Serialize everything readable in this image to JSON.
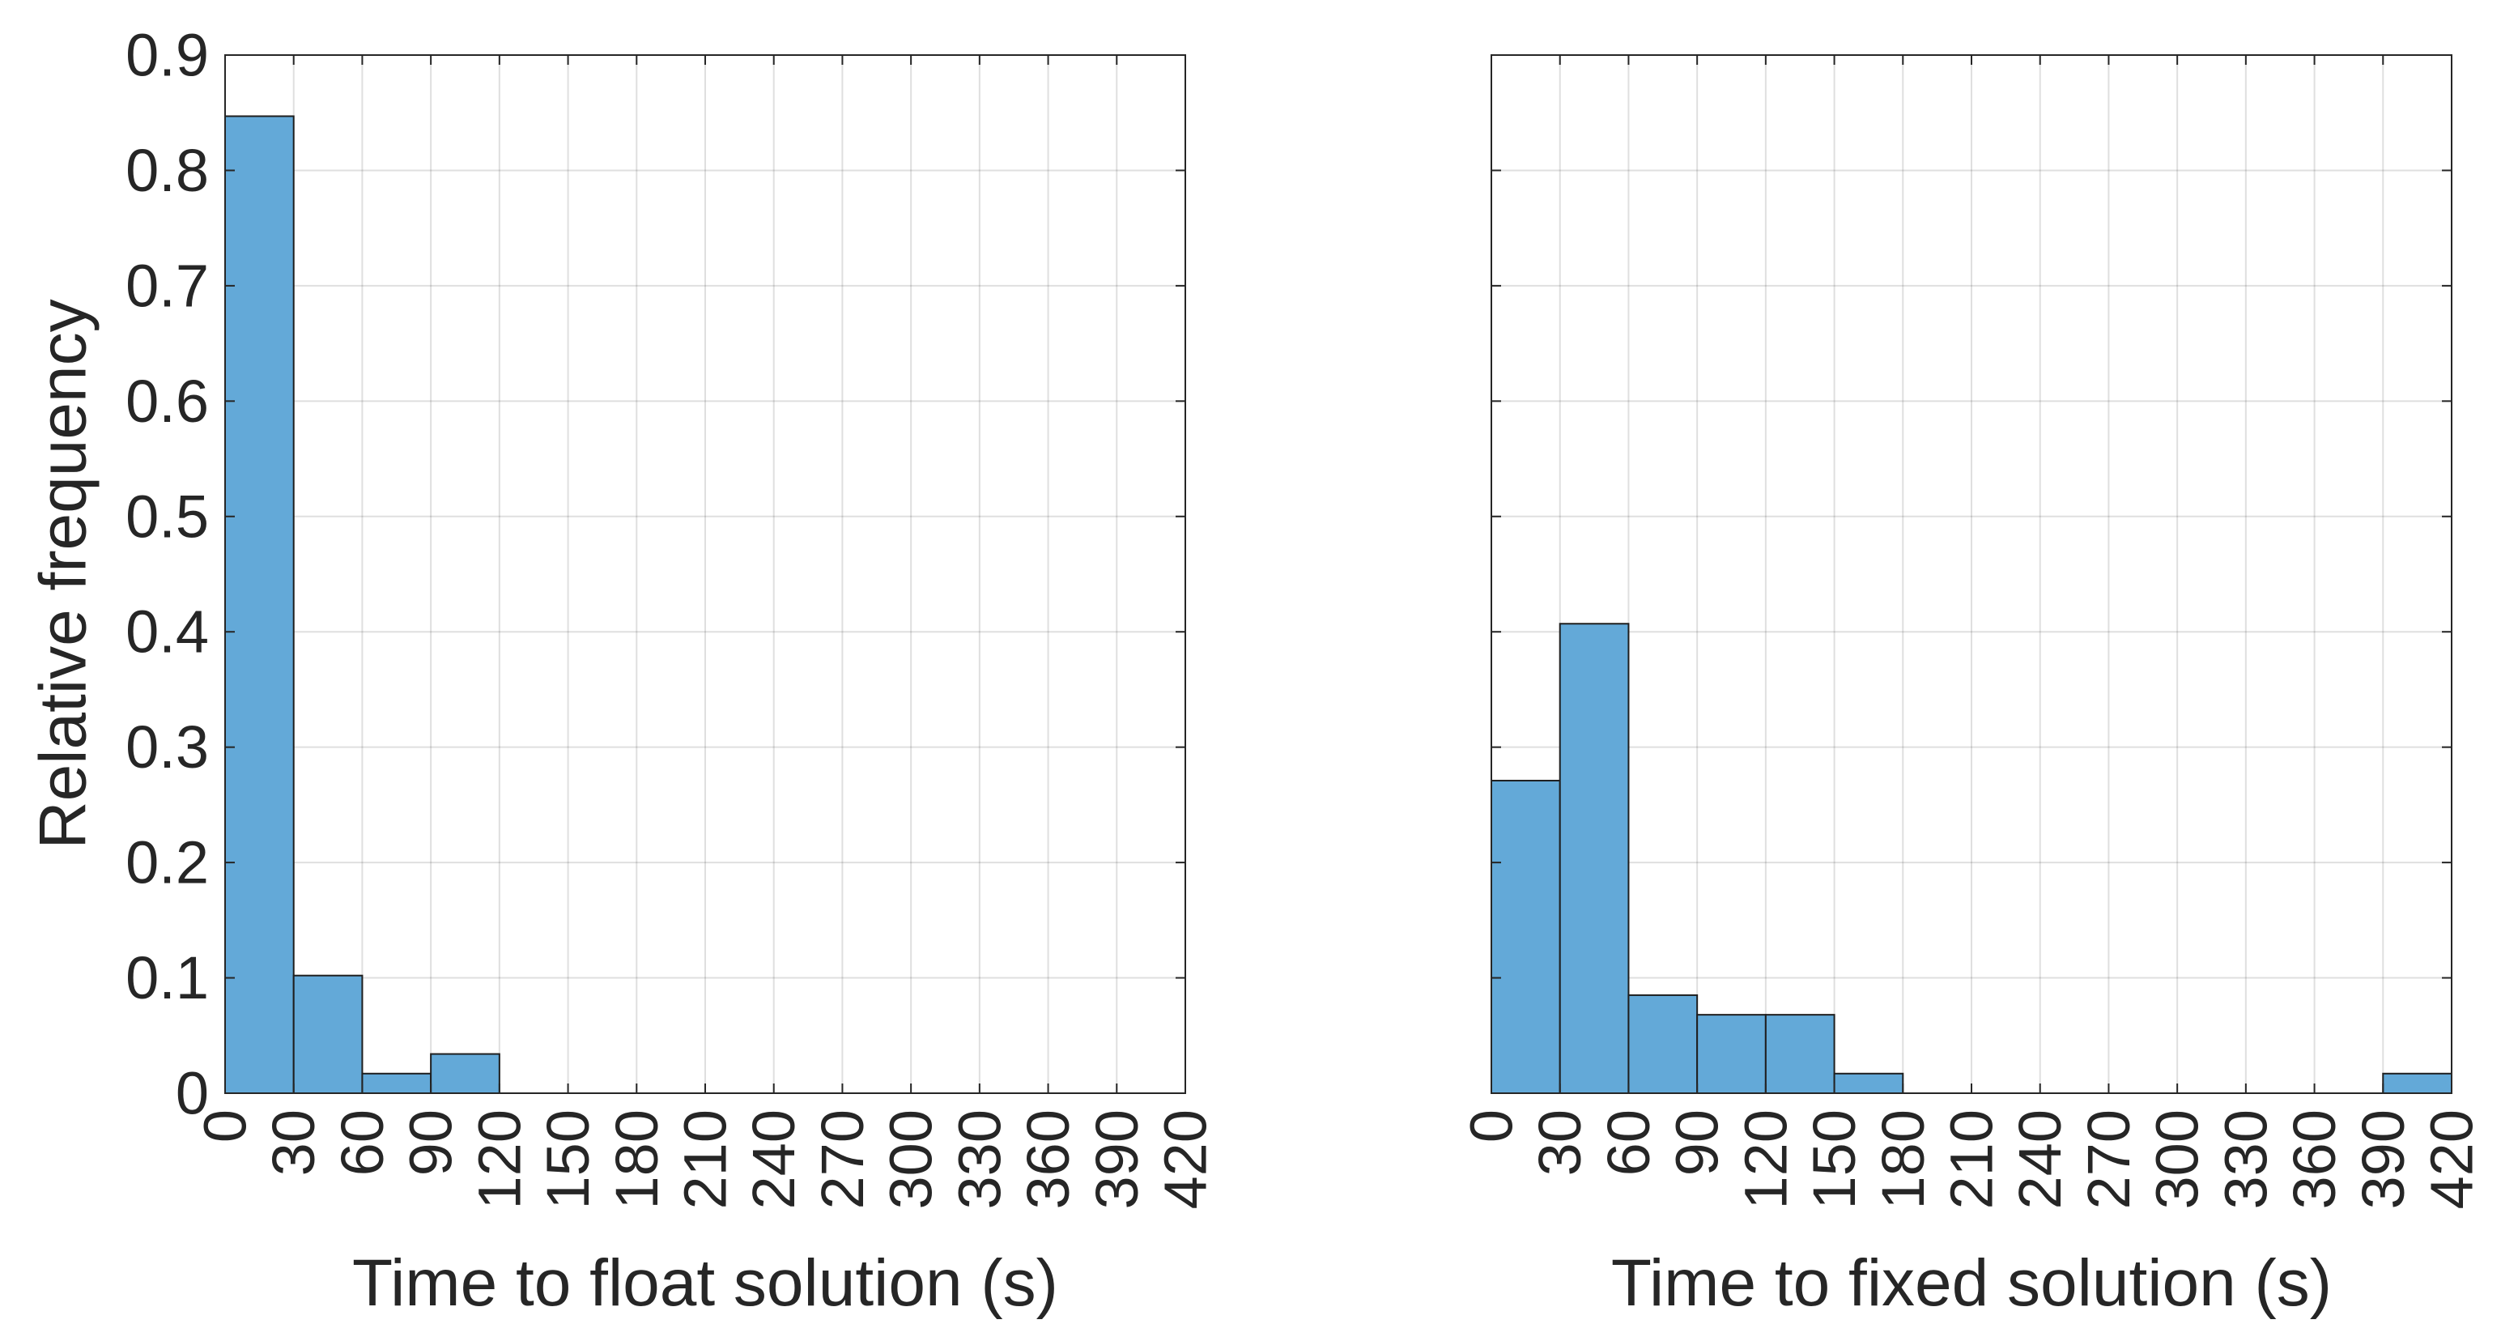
{
  "chart_data": [
    {
      "type": "bar",
      "histogram": true,
      "bin_edges": [
        0,
        30,
        60,
        90,
        120,
        150,
        180,
        210,
        240,
        270,
        300,
        330,
        360,
        390,
        420
      ],
      "values": [
        0.847,
        0.102,
        0.017,
        0.034,
        0,
        0,
        0,
        0,
        0,
        0,
        0,
        0,
        0,
        0
      ],
      "xlabel": "Time to float solution (s)",
      "ylabel": "Relative frequency",
      "xlim": [
        0,
        420
      ],
      "ylim": [
        0,
        0.9
      ],
      "xticks": [
        "0",
        "30",
        "60",
        "90",
        "120",
        "150",
        "180",
        "210",
        "240",
        "270",
        "300",
        "330",
        "360",
        "390",
        "420"
      ],
      "yticks": [
        "0",
        "0.1",
        "0.2",
        "0.3",
        "0.4",
        "0.5",
        "0.6",
        "0.7",
        "0.8",
        "0.9"
      ],
      "grid": true,
      "bar_color": "#63a9d8"
    },
    {
      "type": "bar",
      "histogram": true,
      "bin_edges": [
        0,
        30,
        60,
        90,
        120,
        150,
        180,
        210,
        240,
        270,
        300,
        330,
        360,
        390,
        420
      ],
      "values": [
        0.271,
        0.407,
        0.085,
        0.068,
        0.068,
        0.017,
        0,
        0,
        0,
        0,
        0,
        0,
        0,
        0.017
      ],
      "xlabel": "Time to fixed solution (s)",
      "ylabel": "",
      "xlim": [
        0,
        420
      ],
      "ylim": [
        0,
        0.9
      ],
      "xticks": [
        "0",
        "30",
        "60",
        "90",
        "120",
        "150",
        "180",
        "210",
        "240",
        "270",
        "300",
        "330",
        "360",
        "390",
        "420"
      ],
      "yticks": [],
      "grid": true,
      "bar_color": "#63a9d8"
    }
  ]
}
